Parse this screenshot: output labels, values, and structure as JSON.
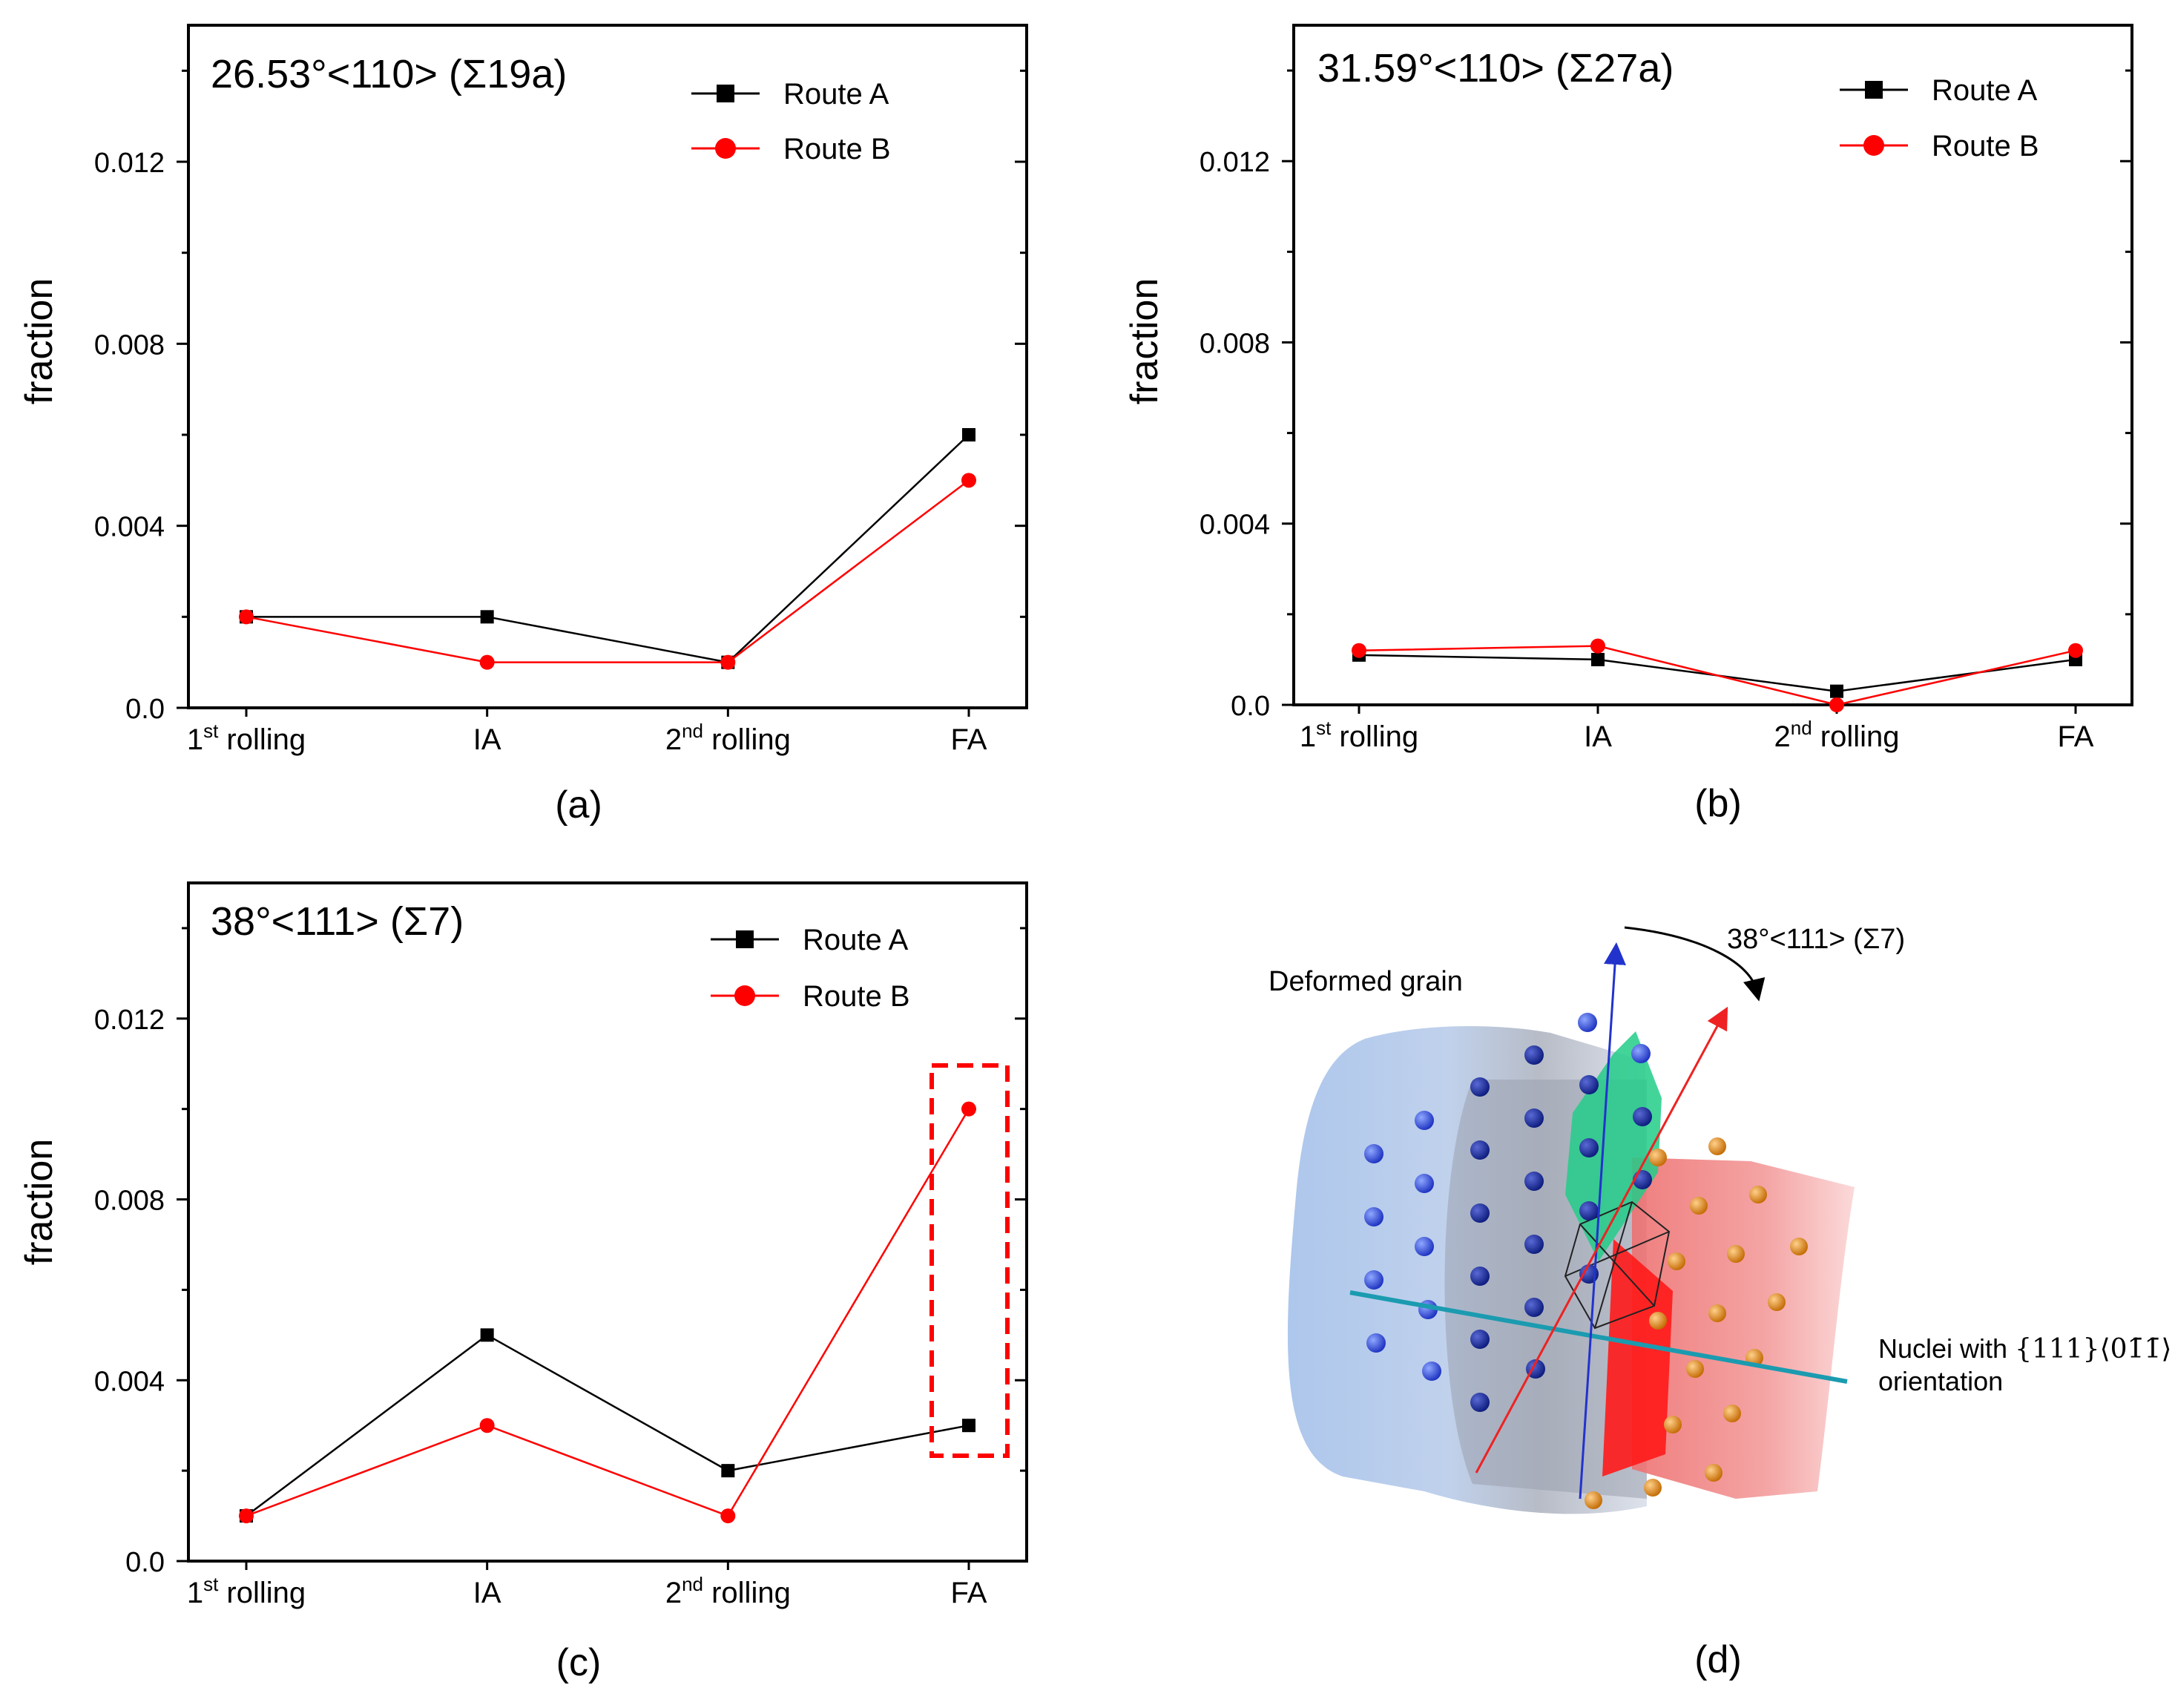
{
  "chart_data": [
    {
      "type": "line",
      "panel_label": "(a)",
      "title": "26.53°<110> (Σ19a)",
      "xlabel": "",
      "ylabel": "fraction",
      "categories": [
        {
          "base": "1",
          "sup": "st",
          "rest": " rolling"
        },
        {
          "base": "IA",
          "sup": "",
          "rest": ""
        },
        {
          "base": "2",
          "sup": "nd",
          "rest": " rolling"
        },
        {
          "base": "FA",
          "sup": "",
          "rest": ""
        }
      ],
      "ylim": [
        0,
        0.015
      ],
      "yticks": [
        "0.0",
        "0.004",
        "0.008",
        "0.012"
      ],
      "series": [
        {
          "name": "Route A",
          "marker": "square",
          "color": "#000000",
          "values": [
            0.002,
            0.002,
            0.001,
            0.006
          ]
        },
        {
          "name": "Route B",
          "marker": "circle",
          "color": "#ff0000",
          "values": [
            0.002,
            0.001,
            0.001,
            0.005
          ]
        }
      ]
    },
    {
      "type": "line",
      "panel_label": "(b)",
      "title": "31.59°<110> (Σ27a)",
      "xlabel": "",
      "ylabel": "fraction",
      "categories": [
        {
          "base": "1",
          "sup": "st",
          "rest": " rolling"
        },
        {
          "base": "IA",
          "sup": "",
          "rest": ""
        },
        {
          "base": "2",
          "sup": "nd",
          "rest": " rolling"
        },
        {
          "base": "FA",
          "sup": "",
          "rest": ""
        }
      ],
      "ylim": [
        0,
        0.015
      ],
      "yticks": [
        "0.0",
        "0.004",
        "0.008",
        "0.012"
      ],
      "series": [
        {
          "name": "Route A",
          "marker": "square",
          "color": "#000000",
          "values": [
            0.0011,
            0.001,
            0.0003,
            0.001
          ]
        },
        {
          "name": "Route B",
          "marker": "circle",
          "color": "#ff0000",
          "values": [
            0.0012,
            0.0013,
            0.0,
            0.0012
          ]
        }
      ]
    },
    {
      "type": "line",
      "panel_label": "(c)",
      "title": "38°<111> (Σ7)",
      "xlabel": "",
      "ylabel": "fraction",
      "categories": [
        {
          "base": "1",
          "sup": "st",
          "rest": " rolling"
        },
        {
          "base": "IA",
          "sup": "",
          "rest": ""
        },
        {
          "base": "2",
          "sup": "nd",
          "rest": " rolling"
        },
        {
          "base": "FA",
          "sup": "",
          "rest": ""
        }
      ],
      "ylim": [
        0,
        0.015
      ],
      "yticks": [
        "0.0",
        "0.004",
        "0.008",
        "0.012"
      ],
      "highlight_category": "FA",
      "series": [
        {
          "name": "Route A",
          "marker": "square",
          "color": "#000000",
          "values": [
            0.001,
            0.005,
            0.002,
            0.003
          ]
        },
        {
          "name": "Route B",
          "marker": "circle",
          "color": "#ff0000",
          "values": [
            0.001,
            0.003,
            0.001,
            0.01
          ]
        }
      ]
    }
  ],
  "schematic": {
    "panel_label": "(d)",
    "rotation_label": "38°<111> (Σ7)",
    "deformed_grain_label": "Deformed grain",
    "nuclei_label_prefix": "Nuclei with ",
    "nuclei_orientation": "{111}⟨01̄1̄⟩",
    "nuclei_label_line2": "orientation"
  }
}
